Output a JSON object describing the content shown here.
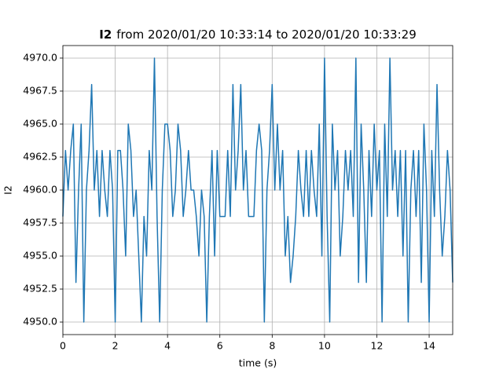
{
  "chart_data": {
    "type": "line",
    "title_variable": "I2",
    "title": "from 2020/01/20 10:33:14 to 2020/01/20 10:33:29",
    "xlabel": "time (s)",
    "ylabel": "I2",
    "x": [
      0.0,
      0.1,
      0.2,
      0.3,
      0.4,
      0.5,
      0.6,
      0.7,
      0.8,
      0.9,
      1.0,
      1.1,
      1.2,
      1.3,
      1.4,
      1.5,
      1.6,
      1.7,
      1.8,
      1.9,
      2.0,
      2.1,
      2.2,
      2.3,
      2.4,
      2.5,
      2.6,
      2.7,
      2.8,
      2.9,
      3.0,
      3.1,
      3.2,
      3.3,
      3.4,
      3.5,
      3.6,
      3.7,
      3.8,
      3.9,
      4.0,
      4.1,
      4.2,
      4.3,
      4.4,
      4.5,
      4.6,
      4.7,
      4.8,
      4.9,
      5.0,
      5.1,
      5.2,
      5.3,
      5.4,
      5.5,
      5.6,
      5.7,
      5.8,
      5.9,
      6.0,
      6.1,
      6.2,
      6.3,
      6.4,
      6.5,
      6.6,
      6.7,
      6.8,
      6.9,
      7.0,
      7.1,
      7.2,
      7.3,
      7.4,
      7.5,
      7.6,
      7.7,
      7.8,
      7.9,
      8.0,
      8.1,
      8.2,
      8.3,
      8.4,
      8.5,
      8.6,
      8.7,
      8.8,
      8.9,
      9.0,
      9.1,
      9.2,
      9.3,
      9.4,
      9.5,
      9.6,
      9.7,
      9.8,
      9.9,
      10.0,
      10.1,
      10.2,
      10.3,
      10.4,
      10.5,
      10.6,
      10.7,
      10.8,
      10.9,
      11.0,
      11.1,
      11.2,
      11.3,
      11.4,
      11.5,
      11.6,
      11.7,
      11.8,
      11.9,
      12.0,
      12.1,
      12.2,
      12.3,
      12.4,
      12.5,
      12.6,
      12.7,
      12.8,
      12.9,
      13.0,
      13.1,
      13.2,
      13.3,
      13.4,
      13.5,
      13.6,
      13.7,
      13.8,
      13.9,
      14.0,
      14.1,
      14.2,
      14.3,
      14.4,
      14.5,
      14.6,
      14.7,
      14.8,
      14.9
    ],
    "values": [
      4958,
      4963,
      4960,
      4963,
      4965,
      4953,
      4960,
      4965,
      4950,
      4960,
      4963,
      4968,
      4960,
      4963,
      4958,
      4963,
      4960,
      4958,
      4963,
      4960,
      4950,
      4963,
      4963,
      4960,
      4955,
      4965,
      4963,
      4958,
      4960,
      4955,
      4950,
      4958,
      4955,
      4963,
      4960,
      4970,
      4958,
      4950,
      4960,
      4965,
      4965,
      4963,
      4958,
      4960,
      4965,
      4963,
      4958,
      4960,
      4963,
      4960,
      4960,
      4958,
      4955,
      4960,
      4958,
      4950,
      4958,
      4963,
      4955,
      4963,
      4958,
      4958,
      4958,
      4963,
      4958,
      4968,
      4960,
      4963,
      4968,
      4960,
      4963,
      4958,
      4958,
      4958,
      4963,
      4965,
      4963,
      4950,
      4960,
      4963,
      4968,
      4960,
      4965,
      4960,
      4963,
      4955,
      4958,
      4953,
      4955,
      4958,
      4963,
      4960,
      4958,
      4963,
      4958,
      4963,
      4960,
      4958,
      4965,
      4955,
      4970,
      4958,
      4950,
      4965,
      4960,
      4963,
      4955,
      4958,
      4963,
      4960,
      4963,
      4958,
      4970,
      4953,
      4965,
      4960,
      4953,
      4963,
      4958,
      4965,
      4960,
      4963,
      4950,
      4965,
      4958,
      4970,
      4960,
      4963,
      4958,
      4963,
      4955,
      4963,
      4950,
      4960,
      4963,
      4958,
      4963,
      4953,
      4965,
      4960,
      4950,
      4963,
      4958,
      4968,
      4960,
      4955,
      4958,
      4963,
      4960,
      4953
    ],
    "color": "#1f77b4",
    "xlim": [
      0,
      14.9
    ],
    "xticks": [
      0,
      2,
      4,
      6,
      8,
      10,
      12,
      14
    ],
    "ylim": [
      4949.05,
      4970.95
    ],
    "yticks": [
      {
        "value": 4950,
        "label": "4950.0"
      },
      {
        "value": 4952.5,
        "label": "4952.5"
      },
      {
        "value": 4955,
        "label": "4955.0"
      },
      {
        "value": 4957.5,
        "label": "4957.5"
      },
      {
        "value": 4960,
        "label": "4960.0"
      },
      {
        "value": 4962.5,
        "label": "4962.5"
      },
      {
        "value": 4965,
        "label": "4965.0"
      },
      {
        "value": 4967.5,
        "label": "4967.5"
      },
      {
        "value": 4970,
        "label": "4970.0"
      }
    ],
    "grid": true
  }
}
